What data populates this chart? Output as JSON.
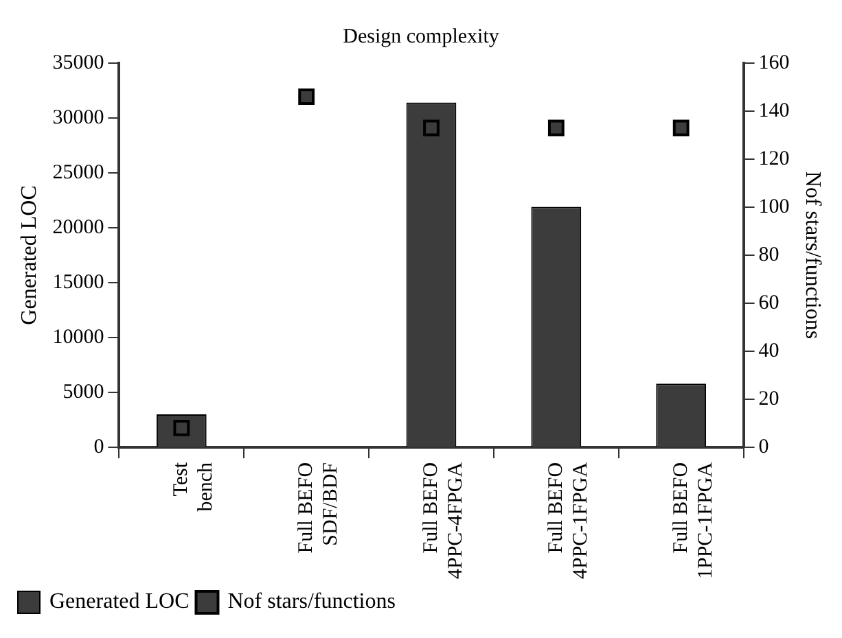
{
  "chart_data": {
    "type": "bar",
    "title": "Design complexity",
    "ylabel": "Generated LOC",
    "y2label": "Nof stars/functions",
    "categories": [
      "Test bench",
      "Full BEFO SDF/BDF",
      "Full BEFO 4PPC-4FPGA",
      "Full BEFO 4PPC-1FPGA",
      "Full BEFO 1PPC-1FPGA"
    ],
    "series": [
      {
        "name": "Generated LOC",
        "color": "#3c3c3c",
        "values": [
          3000,
          0,
          31400,
          21900,
          5800
        ]
      },
      {
        "name": "Nof stars/functions",
        "type": "scatter",
        "axis": "y2",
        "marker": "square",
        "color": "#3c3c3c",
        "values": [
          8,
          146,
          133,
          133,
          133
        ]
      }
    ],
    "ylim": [
      0,
      35000
    ],
    "yticks": [
      0,
      5000,
      10000,
      15000,
      20000,
      25000,
      30000,
      35000
    ],
    "y2lim": [
      0,
      160
    ],
    "y2ticks": [
      0,
      20,
      40,
      60,
      80,
      100,
      120,
      140,
      160
    ],
    "grid": false,
    "legend": "bottom left"
  }
}
